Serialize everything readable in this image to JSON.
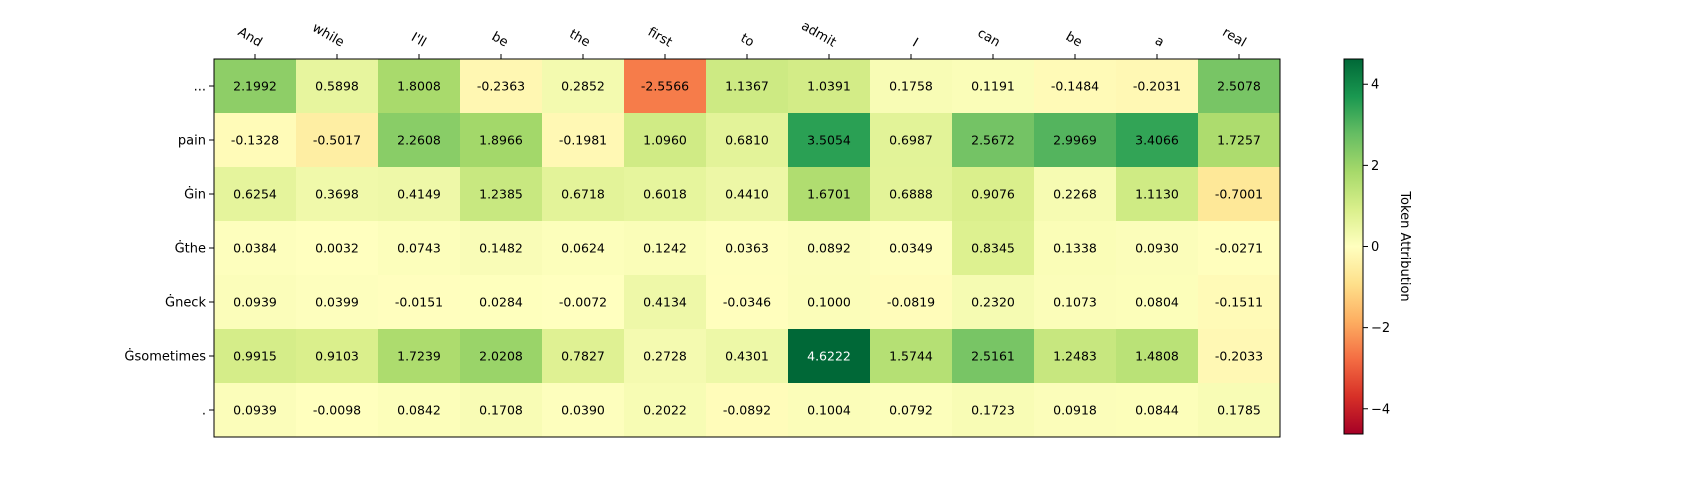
{
  "chart_data": {
    "type": "heatmap",
    "x_tokens": [
      "And",
      "while",
      "I'll",
      "be",
      "the",
      "first",
      "to",
      "admit",
      "I",
      "can",
      "be",
      "a",
      "real"
    ],
    "y_tokens": [
      "...",
      "pain",
      "Ġin",
      "Ġthe",
      "Ġneck",
      "Ġsometimes",
      "."
    ],
    "values": [
      [
        "2.1992",
        "0.5898",
        "1.8008",
        "-0.2363",
        "0.2852",
        "-2.5566",
        "1.1367",
        "1.0391",
        "0.1758",
        "0.1191",
        "-0.1484",
        "-0.2031",
        "2.5078"
      ],
      [
        "-0.1328",
        "-0.5017",
        "2.2608",
        "1.8966",
        "-0.1981",
        "1.0960",
        "0.6810",
        "3.5054",
        "0.6987",
        "2.5672",
        "2.9969",
        "3.4066",
        "1.7257"
      ],
      [
        "0.6254",
        "0.3698",
        "0.4149",
        "1.2385",
        "0.6718",
        "0.6018",
        "0.4410",
        "1.6701",
        "0.6888",
        "0.9076",
        "0.2268",
        "1.1130",
        "-0.7001"
      ],
      [
        "0.0384",
        "0.0032",
        "0.0743",
        "0.1482",
        "0.0624",
        "0.1242",
        "0.0363",
        "0.0892",
        "0.0349",
        "0.8345",
        "0.1338",
        "0.0930",
        "-0.0271"
      ],
      [
        "0.0939",
        "0.0399",
        "-0.0151",
        "0.0284",
        "-0.0072",
        "0.4134",
        "-0.0346",
        "0.1000",
        "-0.0819",
        "0.2320",
        "0.1073",
        "0.0804",
        "-0.1511"
      ],
      [
        "0.9915",
        "0.9103",
        "1.7239",
        "2.0208",
        "0.7827",
        "0.2728",
        "0.4301",
        "4.6222",
        "1.5744",
        "2.5161",
        "1.2483",
        "1.4808",
        "-0.2033"
      ],
      [
        "0.0939",
        "-0.0098",
        "0.0842",
        "0.1708",
        "0.0390",
        "0.2022",
        "-0.0892",
        "0.1004",
        "0.0792",
        "0.1723",
        "0.0918",
        "0.0844",
        "0.1785"
      ]
    ],
    "colormap": "RdYlGn",
    "color_range": [
      -4.6222,
      4.6222
    ],
    "colorbar": {
      "label": "Token Attribution",
      "ticks": [
        4,
        2,
        0,
        -2,
        -4
      ],
      "tick_labels": [
        "4",
        "2",
        "0",
        "−2",
        "−4"
      ]
    },
    "x_tick_rotation": "-30deg"
  }
}
